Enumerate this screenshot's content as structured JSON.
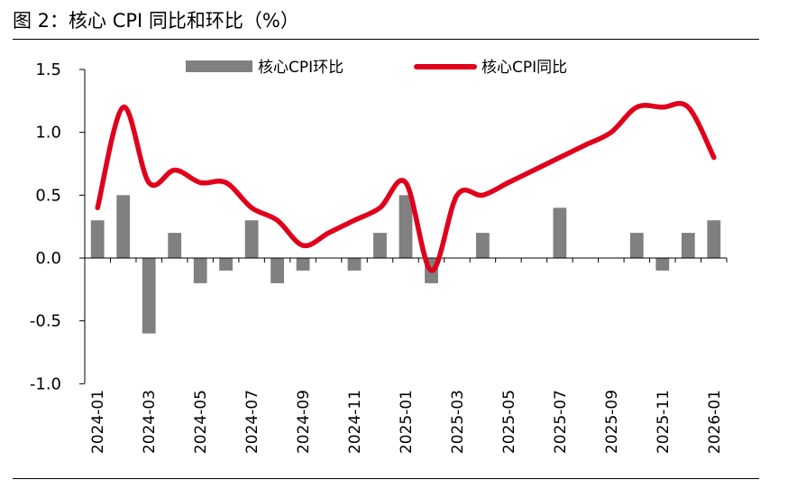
{
  "figure_title": "图 2：核心 CPI 同比和环比（%）",
  "colors": {
    "bar": "#808080",
    "line": "#e0001b",
    "axis": "#000000"
  },
  "chart_data": {
    "type": "bar+line",
    "x": [
      "2024-01",
      "2024-02",
      "2024-03",
      "2024-04",
      "2024-05",
      "2024-06",
      "2024-07",
      "2024-08",
      "2024-09",
      "2024-10",
      "2024-11",
      "2024-12",
      "2025-01",
      "2025-02",
      "2025-03",
      "2025-04",
      "2025-05",
      "2025-06",
      "2025-07",
      "2025-08",
      "2025-09",
      "2025-10",
      "2025-11",
      "2025-12",
      "2026-01"
    ],
    "x_tick_labels": [
      "2024-01",
      "2024-03",
      "2024-05",
      "2024-07",
      "2024-09",
      "2024-11",
      "2025-01",
      "2025-03",
      "2025-05",
      "2025-07",
      "2025-09",
      "2025-11",
      "2026-01"
    ],
    "ylim": [
      -1.0,
      1.5
    ],
    "y_ticks": [
      1.5,
      1.0,
      0.5,
      0.0,
      -0.5,
      -1.0
    ],
    "y_tick_labels": [
      "1.5",
      "1.0",
      "0.5",
      "0.0",
      "-0.5",
      "-1.0"
    ],
    "legend_position": "top",
    "grid": false,
    "series": [
      {
        "name": "核心CPI环比",
        "type": "bar",
        "values": [
          0.3,
          0.5,
          -0.6,
          0.2,
          -0.2,
          -0.1,
          0.3,
          -0.2,
          -0.1,
          0.0,
          -0.1,
          0.2,
          0.5,
          -0.2,
          0.0,
          0.2,
          0.0,
          0.0,
          0.4,
          0.0,
          0.0,
          0.2,
          -0.1,
          0.2,
          0.3
        ]
      },
      {
        "name": "核心CPI同比",
        "type": "line",
        "values": [
          0.4,
          1.2,
          0.6,
          0.7,
          0.6,
          0.6,
          0.4,
          0.3,
          0.1,
          0.2,
          0.3,
          0.4,
          0.6,
          -0.1,
          0.5,
          0.5,
          0.6,
          0.7,
          0.8,
          0.9,
          1.0,
          1.2,
          1.2,
          1.2,
          0.8
        ]
      }
    ]
  }
}
